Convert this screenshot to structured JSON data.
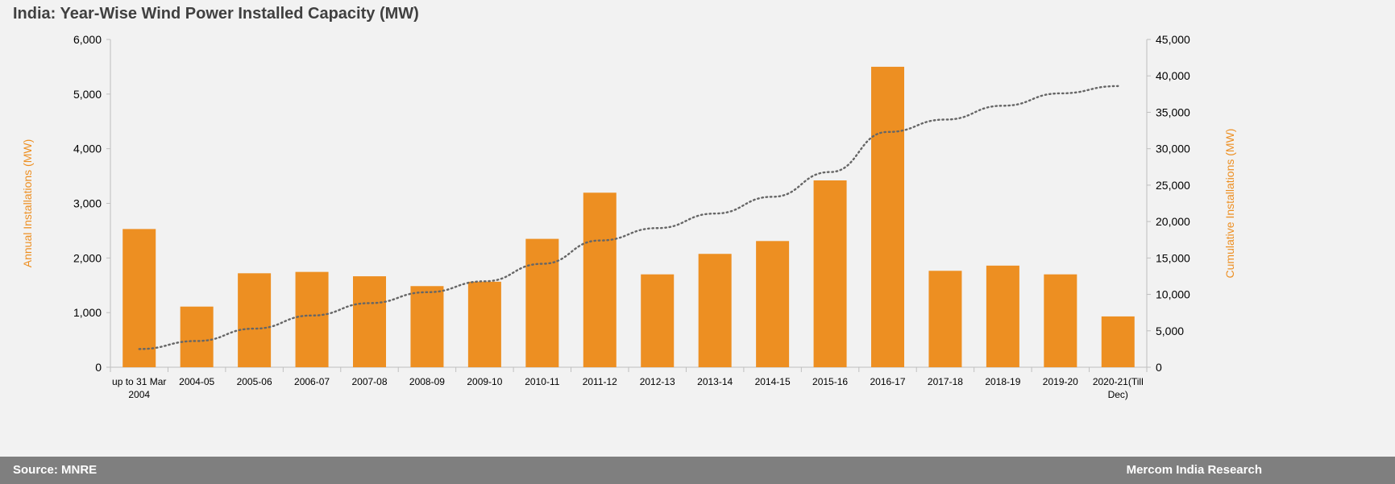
{
  "title": "India: Year-Wise Wind Power Installed Capacity (MW)",
  "footer": {
    "source": "Source: MNRE",
    "brand": "Mercom India Research"
  },
  "colors": {
    "bar": "#ed8f22",
    "line": "#666666",
    "axis_label": "#ed8f22",
    "tick_text": "#000000"
  },
  "chart_data": {
    "type": "bar",
    "title": "India: Year-Wise Wind Power Installed Capacity (MW)",
    "categories": [
      "up to 31 Mar 2004",
      "2004-05",
      "2005-06",
      "2006-07",
      "2007-08",
      "2008-09",
      "2009-10",
      "2010-11",
      "2011-12",
      "2012-13",
      "2013-14",
      "2014-15",
      "2015-16",
      "2016-17",
      "2017-18",
      "2018-19",
      "2019-20",
      "2020-21(Till Dec)"
    ],
    "category_lines": [
      [
        "up to 31 Mar",
        "2004"
      ],
      [
        "2004-05"
      ],
      [
        "2005-06"
      ],
      [
        "2006-07"
      ],
      [
        "2007-08"
      ],
      [
        "2008-09"
      ],
      [
        "2009-10"
      ],
      [
        "2010-11"
      ],
      [
        "2011-12"
      ],
      [
        "2012-13"
      ],
      [
        "2013-14"
      ],
      [
        "2014-15"
      ],
      [
        "2015-16"
      ],
      [
        "2016-17"
      ],
      [
        "2017-18"
      ],
      [
        "2018-19"
      ],
      [
        "2019-20"
      ],
      [
        "2020-21(Till",
        "Dec)"
      ]
    ],
    "series": [
      {
        "name": "Annual Installations (MW)",
        "type": "bar",
        "axis": "left",
        "values": [
          2530,
          1110,
          1720,
          1745,
          1665,
          1485,
          1565,
          2350,
          3195,
          1700,
          2075,
          2310,
          3420,
          5500,
          1765,
          1860,
          1700,
          930
        ]
      },
      {
        "name": "Cumulative Installations (MW)",
        "type": "line",
        "style": "dotted",
        "axis": "right",
        "values": [
          2500,
          3600,
          5300,
          7100,
          8800,
          10300,
          11800,
          14200,
          17400,
          19100,
          21100,
          23400,
          26800,
          32300,
          34000,
          35900,
          37600,
          38600
        ]
      }
    ],
    "ylabel": "Annual Installations (MW)",
    "y2label": "Cumulative Installations (MW)",
    "ylim": [
      0,
      6000
    ],
    "y2lim": [
      0,
      45000
    ],
    "yticks": [
      0,
      1000,
      2000,
      3000,
      4000,
      5000,
      6000
    ],
    "y2ticks": [
      0,
      5000,
      10000,
      15000,
      20000,
      25000,
      30000,
      35000,
      40000,
      45000
    ],
    "grid": false,
    "legend": "none"
  }
}
